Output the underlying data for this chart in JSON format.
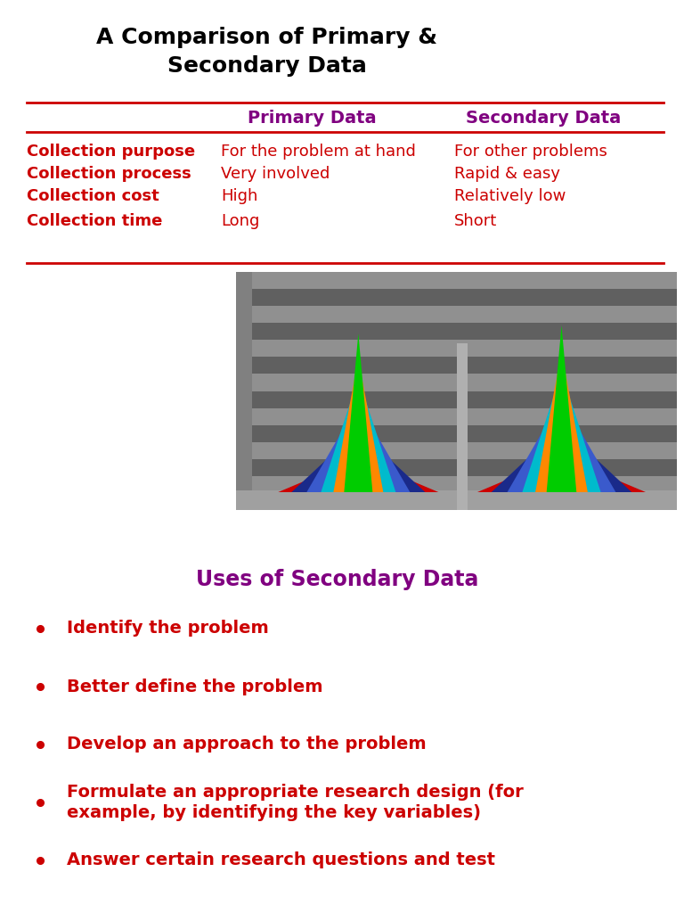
{
  "title": "A Comparison of Primary &\nSecondary Data",
  "title_color": "#000000",
  "title_fontsize": 18,
  "bg_color": "#ffffff",
  "header_color": "#800080",
  "row_color": "#cc0000",
  "table_headers": [
    "",
    "Primary Data",
    "Secondary Data"
  ],
  "table_rows": [
    [
      "Collection purpose",
      "For the problem at hand",
      "For other problems"
    ],
    [
      "Collection process",
      "Very involved",
      "Rapid & easy"
    ],
    [
      "Collection cost",
      "High",
      "Relatively low"
    ],
    [
      "Collection time",
      "Long",
      "Short"
    ]
  ],
  "line_color": "#cc0000",
  "section2_title": "Uses of Secondary Data",
  "section2_title_color": "#800080",
  "section2_title_fontsize": 17,
  "bullet_color": "#cc0000",
  "bullet_items": [
    "Identify the problem",
    "Better define the problem",
    "Develop an approach to the problem",
    "Formulate an appropriate research design (for\nexample, by identifying the key variables)",
    "Answer certain research questions and test"
  ],
  "bullet_fontsize": 14,
  "chart_stripe_color_dark": "#606060",
  "chart_stripe_color_light": "#909090",
  "chart_bg": "#707070",
  "chart_left_wall": "#808080",
  "chart_bottom_wall": "#a0a0a0",
  "mountain_colors": [
    "#cc0000",
    "#1a2a8a",
    "#3a5acc",
    "#00bbcc",
    "#ff8800",
    "#00cc00"
  ]
}
